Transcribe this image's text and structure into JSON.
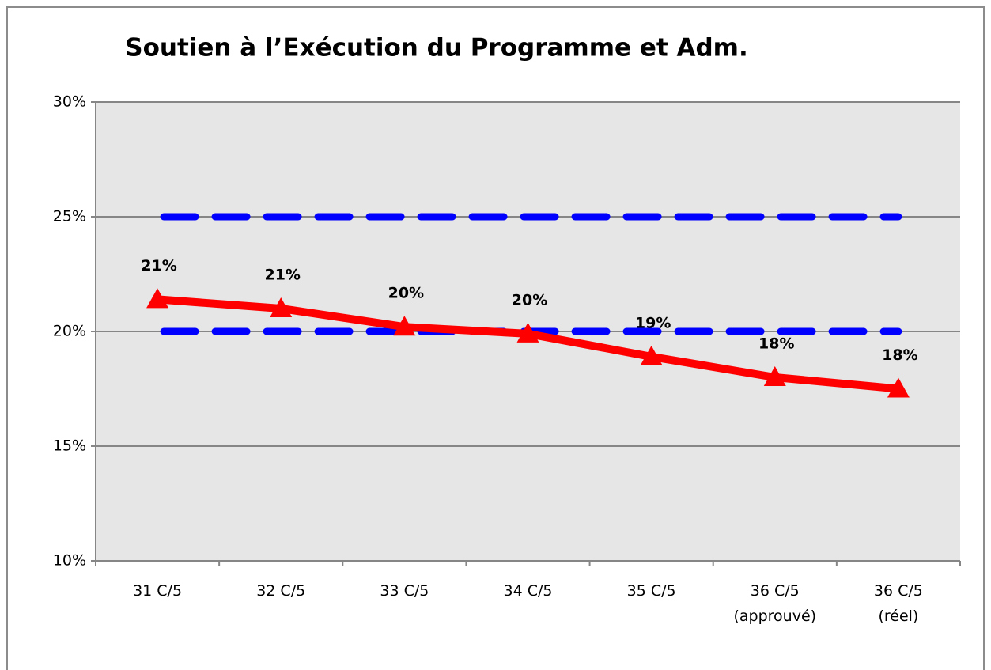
{
  "chart_data": {
    "type": "line",
    "title": "Soutien à l’Exécution du Programme et Adm.",
    "categories": [
      "31 C/5",
      "32 C/5",
      "33 C/5",
      "34 C/5",
      "35 C/5",
      "36 C/5\n(approuvé)",
      "36 C/5\n(réel)"
    ],
    "series": [
      {
        "color": "#ff0000",
        "style": "solid",
        "marker": "triangle",
        "values": [
          21.4,
          21.0,
          20.2,
          19.9,
          18.9,
          18.0,
          17.5
        ],
        "value_labels": [
          "21%",
          "21%",
          "20%",
          "20%",
          "19%",
          "18%",
          "18%"
        ]
      },
      {
        "color": "#0000ff",
        "style": "dashed",
        "values": [
          25,
          25,
          25,
          25,
          25,
          25,
          25
        ]
      },
      {
        "color": "#0000ff",
        "style": "dashed",
        "values": [
          20,
          20,
          20,
          20,
          20,
          20,
          20
        ]
      }
    ],
    "ylim": [
      10,
      30
    ],
    "yticks": [
      {
        "value": 10,
        "label": "10%"
      },
      {
        "value": 15,
        "label": "15%"
      },
      {
        "value": 20,
        "label": "20%"
      },
      {
        "value": 25,
        "label": "25%"
      },
      {
        "value": 30,
        "label": "30%"
      }
    ],
    "grid": true
  }
}
